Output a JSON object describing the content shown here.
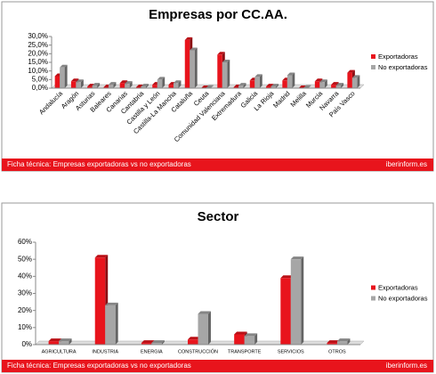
{
  "chart_data": [
    {
      "type": "bar",
      "title": "Empresas por CC.AA.",
      "categories": [
        "Andalucía",
        "Aragón",
        "Asturias",
        "Baleares",
        "Canarias",
        "Cantabria",
        "Castilla y León",
        "Castilla-La Mancha",
        "Cataluña",
        "Ceuta",
        "Comunidad Valenciana",
        "Extremadura",
        "Galicia",
        "La Rioja",
        "Madrid",
        "Melilla",
        "Murcia",
        "Navarra",
        "País Vasco"
      ],
      "series": [
        {
          "name": "Exportadoras",
          "color": "#e8141c",
          "values": [
            7,
            4,
            1,
            0.5,
            3,
            0.5,
            2,
            2,
            28,
            0,
            19.5,
            0.5,
            4.5,
            1,
            4.5,
            0,
            4,
            2,
            9
          ]
        },
        {
          "name": "No exportadoras",
          "color": "#a6a6a6",
          "values": [
            12,
            3.5,
            1.5,
            2,
            2.5,
            1,
            5,
            3,
            22,
            0.2,
            15,
            1.5,
            6.5,
            1,
            7.5,
            0.2,
            3.5,
            1.5,
            6
          ]
        }
      ],
      "ylim": [
        0,
        30
      ],
      "yticks": [
        {
          "value": 0,
          "label": "0,0%"
        },
        {
          "value": 5,
          "label": "5,0%"
        },
        {
          "value": 10,
          "label": "10,0%"
        },
        {
          "value": 15,
          "label": "15,0%"
        },
        {
          "value": 20,
          "label": "20,0%"
        },
        {
          "value": 25,
          "label": "25,0%"
        },
        {
          "value": 30,
          "label": "30,0%"
        }
      ],
      "legend": "right",
      "footer": "Ficha técnica: Empresas exportadoras vs no exportadoras",
      "source": "iberinform.es"
    },
    {
      "type": "bar",
      "title": "Sector",
      "categories": [
        "AGRICULTURA",
        "INDUSTRIA",
        "ENERGIA",
        "CONSTRUCCIÓN",
        "TRANSPORTE",
        "SERVICIOS",
        "OTROS"
      ],
      "series": [
        {
          "name": "Exportadoras",
          "color": "#e8141c",
          "values": [
            2,
            51,
            1,
            3,
            6,
            39,
            1
          ]
        },
        {
          "name": "No exportadoras",
          "color": "#a6a6a6",
          "values": [
            2,
            23,
            1,
            18,
            5,
            50,
            2
          ]
        }
      ],
      "ylim": [
        0,
        60
      ],
      "yticks": [
        {
          "value": 0,
          "label": "0%"
        },
        {
          "value": 10,
          "label": "10%"
        },
        {
          "value": 20,
          "label": "20%"
        },
        {
          "value": 30,
          "label": "30%"
        },
        {
          "value": 40,
          "label": "40%"
        },
        {
          "value": 50,
          "label": "50%"
        },
        {
          "value": 60,
          "label": "60%"
        }
      ],
      "legend": "right",
      "footer": "Ficha técnica: Empresas exportadoras vs no exportadoras",
      "source": "iberinform.es"
    }
  ]
}
